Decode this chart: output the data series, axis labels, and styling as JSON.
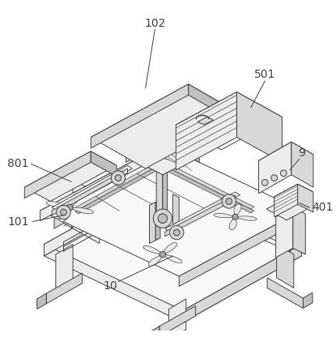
{
  "background_color": "#ffffff",
  "line_color": "#404040",
  "fill_white": "#f8f8f8",
  "fill_light": "#ececec",
  "fill_mid": "#d8d8d8",
  "fill_dark": "#c0c0c0",
  "fill_darker": "#a8a8a8",
  "label_fontsize": 10,
  "lw": 0.7
}
